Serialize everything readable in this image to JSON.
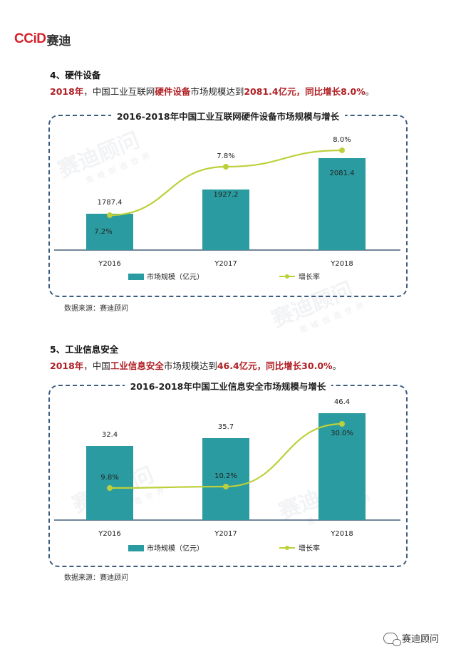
{
  "logo": {
    "text_latin": "CCiD",
    "text_cn": "赛迪"
  },
  "section4": {
    "title": "4、硬件设备",
    "desc_parts": [
      "2018年",
      "，中国工业互联网",
      "硬件设备",
      "市场规模达到",
      "2081.4亿元，同比增长8.0%",
      "。"
    ]
  },
  "section5": {
    "title": "5、工业信息安全",
    "desc_parts": [
      "2018年",
      "，中国",
      "工业信息安全",
      "市场规模达到",
      "46.4亿元，同比增长30.0%",
      "。"
    ]
  },
  "source_text": "数据来源：赛迪顾问",
  "watermark": {
    "main": "赛迪顾问",
    "sub": "思维创造世界"
  },
  "footer": {
    "brand": "赛迪顾问"
  },
  "colors": {
    "bar": "#2a9ba0",
    "line": "#bdd03a",
    "accent": "#b01e23",
    "border": "#3b5d80"
  },
  "chart_data": [
    {
      "type": "bar",
      "title": "2016-2018年中国工业互联网硬件设备市场规模与增长",
      "categories": [
        "Y2016",
        "Y2017",
        "Y2018"
      ],
      "series": [
        {
          "name": "市场规模（亿元）",
          "type": "bar",
          "values": [
            1787.4,
            1927.2,
            2081.4
          ],
          "labels": [
            "1787.4",
            "1927.2",
            "2081.4"
          ]
        },
        {
          "name": "增长率",
          "type": "line",
          "values": [
            7.2,
            7.8,
            8.0
          ],
          "labels": [
            "7.2%",
            "7.8%",
            "8.0%"
          ]
        }
      ],
      "legend": "bottom"
    },
    {
      "type": "bar",
      "title": "2016-2018年中国工业信息安全市场规模与增长",
      "categories": [
        "Y2016",
        "Y2017",
        "Y2018"
      ],
      "series": [
        {
          "name": "市场规模（亿元）",
          "type": "bar",
          "values": [
            32.4,
            35.7,
            46.4
          ],
          "labels": [
            "32.4",
            "35.7",
            "46.4"
          ]
        },
        {
          "name": "增长率",
          "type": "line",
          "values": [
            9.8,
            10.2,
            30.0
          ],
          "labels": [
            "9.8%",
            "10.2%",
            "30.0%"
          ]
        }
      ],
      "legend": "bottom"
    }
  ]
}
